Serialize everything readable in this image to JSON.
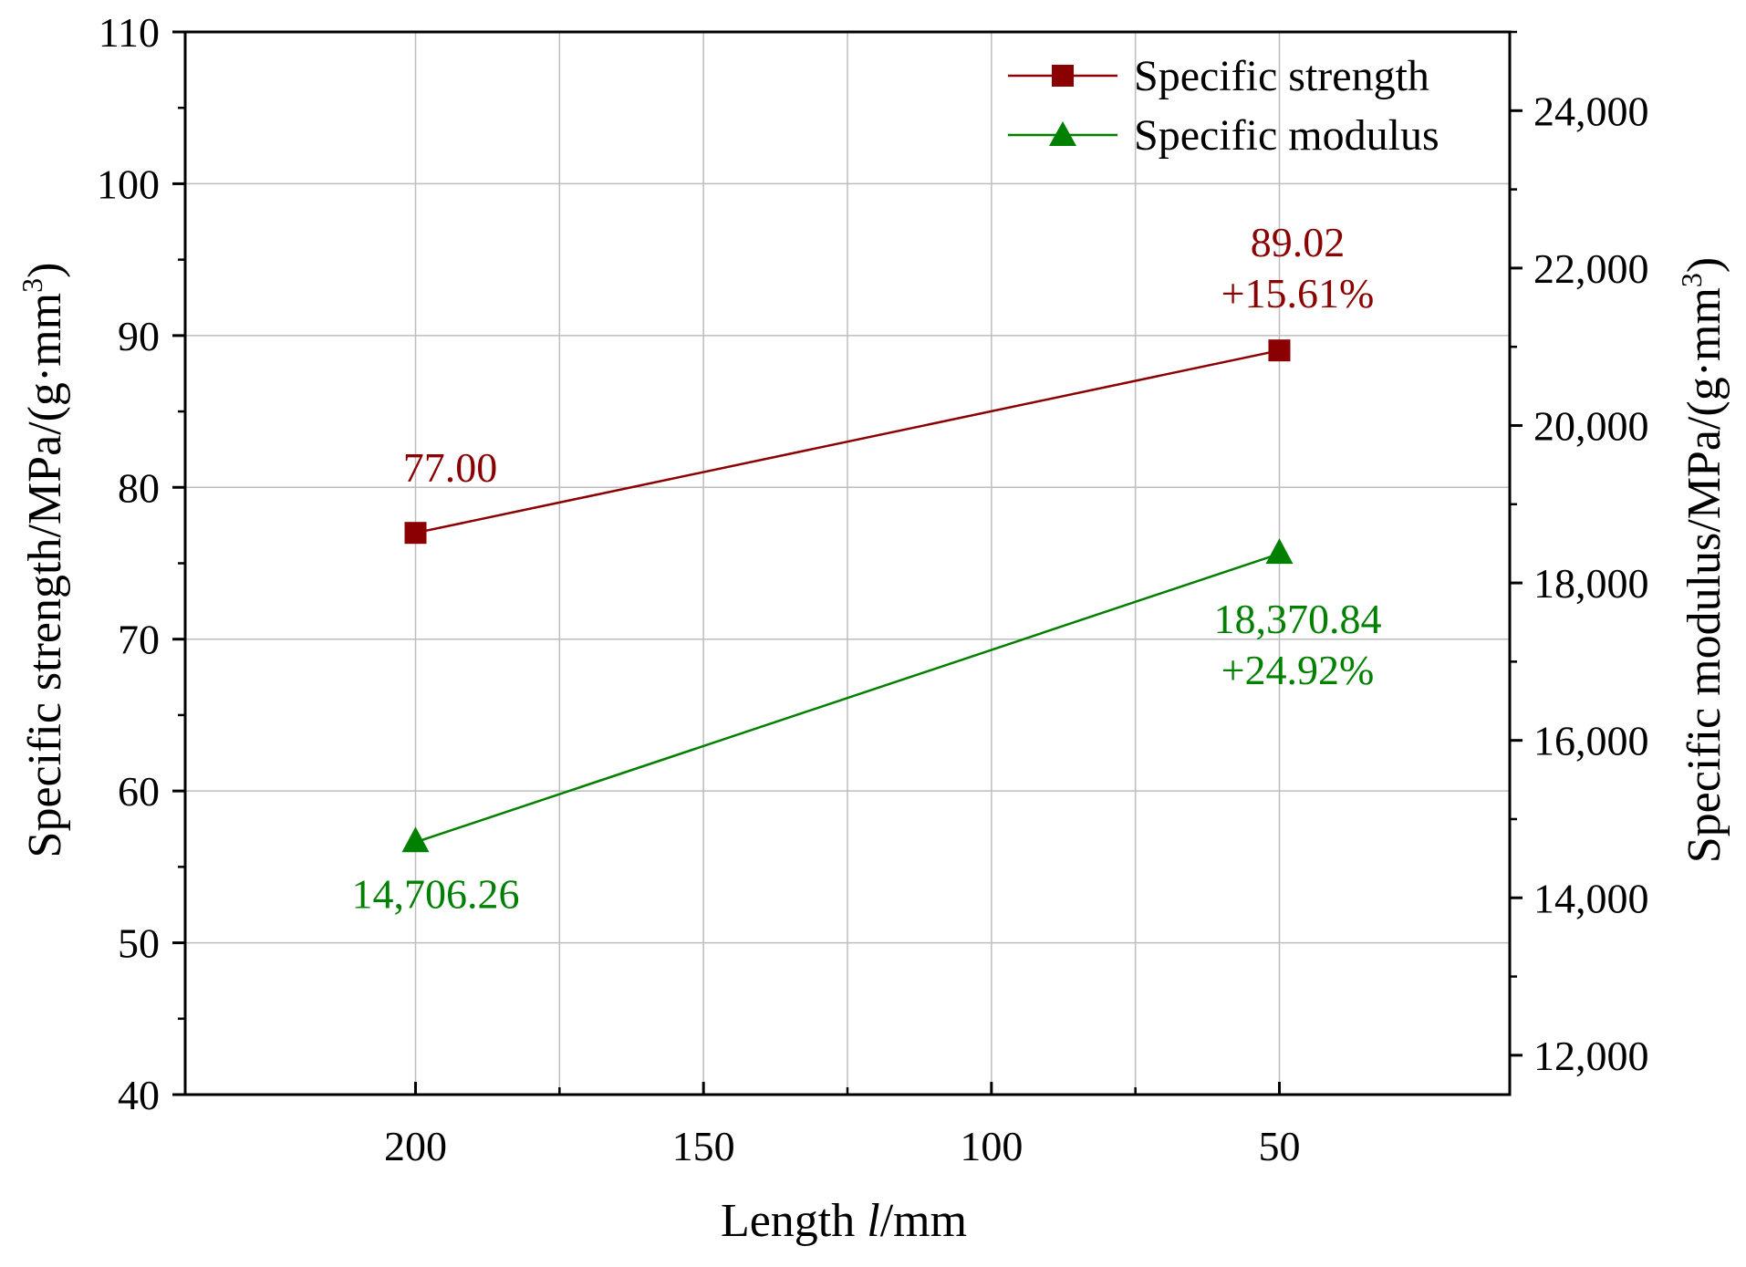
{
  "chart_data": {
    "type": "line",
    "xlabel_prefix": "Length ",
    "xlabel_var": "l",
    "xlabel_unit": "/mm",
    "ylabel_left_main": "Specific strength/MPa/(g·mm",
    "ylabel_right_main": "Specific modulus/MPa/(g·mm",
    "ylabel_sup": "3",
    "ylabel_close": ")",
    "x_axis": {
      "range": [
        240,
        10
      ],
      "reversed": true,
      "ticks": [
        200,
        150,
        100,
        50
      ]
    },
    "y_left": {
      "range": [
        40,
        110
      ],
      "ticks": [
        40,
        50,
        60,
        70,
        80,
        90,
        100,
        110
      ]
    },
    "y_right": {
      "range": [
        11500,
        25000
      ],
      "ticks": [
        12000,
        14000,
        16000,
        18000,
        20000,
        22000,
        24000
      ],
      "tick_labels": [
        "12,000",
        "14,000",
        "16,000",
        "18,000",
        "20,000",
        "22,000",
        "24,000"
      ]
    },
    "grid": true,
    "legend_position": "top-right",
    "series": [
      {
        "name": "Specific strength",
        "axis": "left",
        "color": "#8b0000",
        "marker": "square",
        "x": [
          200,
          50
        ],
        "values": [
          77.0,
          89.02
        ],
        "annotations": [
          {
            "lines": [
              "77.00"
            ]
          },
          {
            "lines": [
              "89.02",
              "+15.61%"
            ]
          }
        ]
      },
      {
        "name": "Specific modulus",
        "axis": "right",
        "color": "#008000",
        "marker": "triangle",
        "x": [
          200,
          50
        ],
        "values": [
          14706.26,
          18370.84
        ],
        "annotations": [
          {
            "lines": [
              "14,706.26"
            ]
          },
          {
            "lines": [
              "18,370.84",
              "+24.92%"
            ]
          }
        ]
      }
    ]
  }
}
